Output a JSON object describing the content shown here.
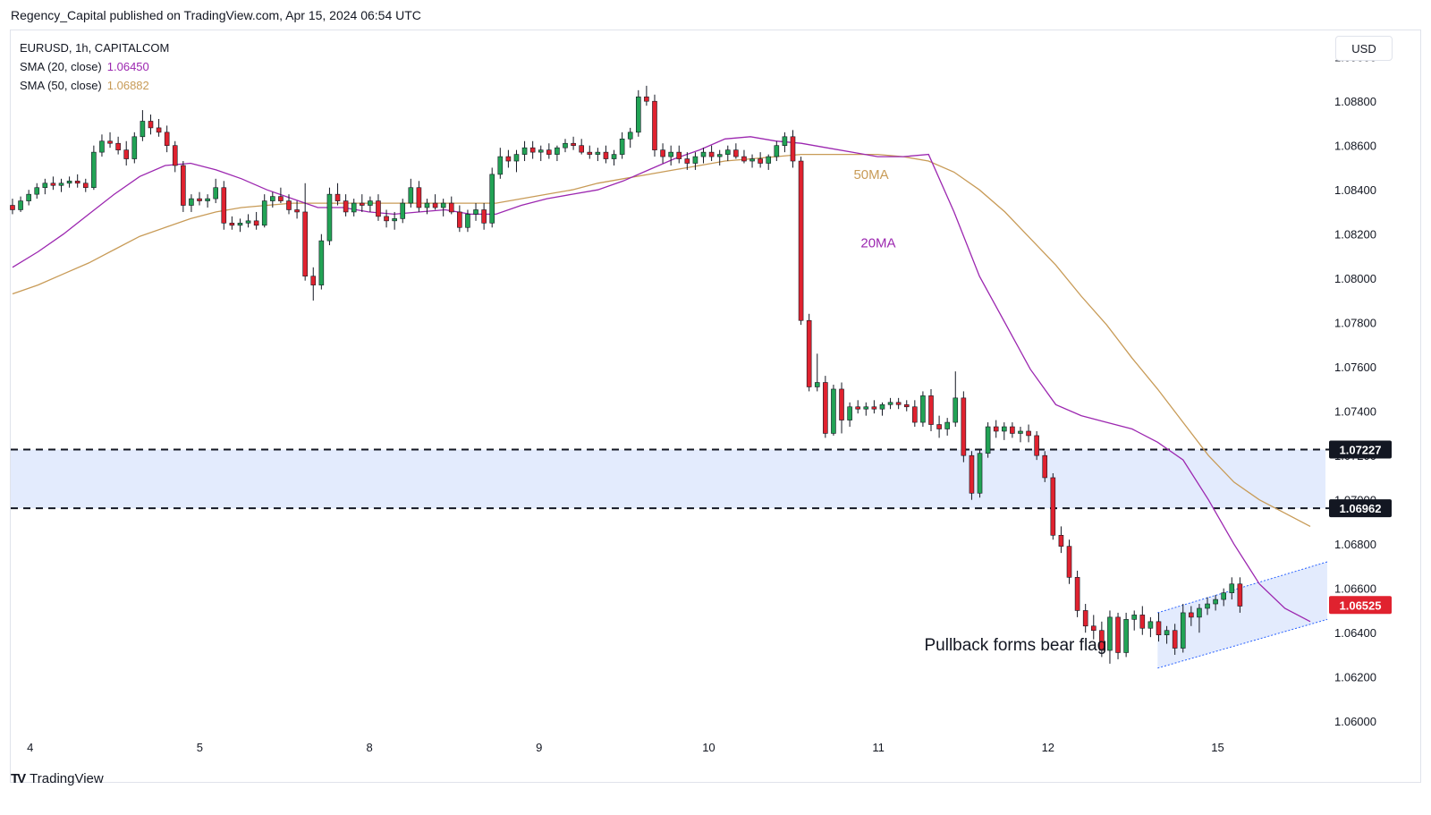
{
  "header": {
    "publisher_line": "Regency_Capital published on TradingView.com, Apr 15, 2024 06:54 UTC"
  },
  "legend": {
    "symbol": "EURUSD, 1h, CAPITALCOM",
    "sma20_label": "SMA (20, close)",
    "sma20_value": "1.06450",
    "sma50_label": "SMA (50, close)",
    "sma50_value": "1.06882"
  },
  "currency_button": "USD",
  "footer": {
    "logo_icon": "TV",
    "logo_text": "TradingView"
  },
  "colors": {
    "up": "#22a355",
    "down": "#e0222f",
    "sma20": "#9c27b0",
    "sma50": "#c89b57",
    "zone": "#e3ebfd",
    "flag": "#e3ebfd",
    "flag_line": "#2962ff",
    "price_label": "#131722",
    "last_price": "#e0222f"
  },
  "chart_data": {
    "type": "candlestick",
    "title": "",
    "xlabel": "",
    "ylabel": "",
    "ylim": [
      1.0592,
      1.0912
    ],
    "y_ticks": [
      "1.06000",
      "1.06200",
      "1.06400",
      "1.06600",
      "1.06800",
      "1.07000",
      "1.07200",
      "1.07400",
      "1.07600",
      "1.07800",
      "1.08000",
      "1.08200",
      "1.08400",
      "1.08600",
      "1.08800",
      "1.09000"
    ],
    "x_ticks": [
      "4",
      "5",
      "8",
      "9",
      "10",
      "11",
      "12",
      "15"
    ],
    "x_tick_bars": [
      5,
      53,
      101,
      149,
      197,
      245,
      293,
      341
    ],
    "bars_visible": 372,
    "price_markers": [
      {
        "label": "1.07227",
        "value": 1.07227,
        "style": "dashed"
      },
      {
        "label": "1.06962",
        "value": 1.06962,
        "style": "dashed"
      },
      {
        "label": "1.06525",
        "value": 1.06525,
        "style": "last"
      }
    ],
    "support_zone": [
      1.06962,
      1.07227
    ],
    "annotations": [
      {
        "text": "50MA",
        "bar": 238,
        "value": 1.0845,
        "color": "#c89b57"
      },
      {
        "text": "20MA",
        "bar": 240,
        "value": 1.0814,
        "color": "#9c27b0"
      },
      {
        "text": "Pullback forms bear flag",
        "bar": 258,
        "value": 1.0632,
        "color": "#131722"
      }
    ],
    "bear_flag": {
      "start_bar": 324,
      "end_bar": 372,
      "upper": [
        1.0649,
        1.0672
      ],
      "lower": [
        1.0624,
        1.0646
      ]
    },
    "ohlc": [
      [
        1.0833,
        1.0836,
        1.0829,
        1.0831
      ],
      [
        1.0831,
        1.0837,
        1.083,
        1.0835
      ],
      [
        1.0835,
        1.084,
        1.0833,
        1.0838
      ],
      [
        1.0838,
        1.0843,
        1.0836,
        1.0841
      ],
      [
        1.0841,
        1.0845,
        1.0838,
        1.0843
      ],
      [
        1.0843,
        1.0846,
        1.084,
        1.0842
      ],
      [
        1.0842,
        1.0845,
        1.0839,
        1.0843
      ],
      [
        1.0843,
        1.0846,
        1.0841,
        1.0844
      ],
      [
        1.0844,
        1.0847,
        1.0841,
        1.0843
      ],
      [
        1.0843,
        1.0845,
        1.0839,
        1.0841
      ],
      [
        1.0841,
        1.086,
        1.084,
        1.0857
      ],
      [
        1.0857,
        1.0865,
        1.0855,
        1.0862
      ],
      [
        1.0862,
        1.0866,
        1.0859,
        1.0861
      ],
      [
        1.0861,
        1.0864,
        1.0856,
        1.0858
      ],
      [
        1.0858,
        1.0862,
        1.0851,
        1.0854
      ],
      [
        1.0854,
        1.0866,
        1.0852,
        1.0864
      ],
      [
        1.0864,
        1.0876,
        1.0862,
        1.0871
      ],
      [
        1.0871,
        1.0874,
        1.0865,
        1.0868
      ],
      [
        1.0868,
        1.0872,
        1.0864,
        1.0866
      ],
      [
        1.0866,
        1.0869,
        1.0857,
        1.086
      ],
      [
        1.086,
        1.0862,
        1.0848,
        1.0851
      ],
      [
        1.0851,
        1.0853,
        1.083,
        1.0833
      ],
      [
        1.0833,
        1.0838,
        1.083,
        1.0836
      ],
      [
        1.0836,
        1.0839,
        1.0833,
        1.0835
      ],
      [
        1.0835,
        1.0838,
        1.0832,
        1.0836
      ],
      [
        1.0836,
        1.0845,
        1.0834,
        1.0841
      ],
      [
        1.0841,
        1.0844,
        1.0822,
        1.0825
      ],
      [
        1.0825,
        1.0828,
        1.0822,
        1.0824
      ],
      [
        1.0824,
        1.0827,
        1.0821,
        1.0825
      ],
      [
        1.0825,
        1.0829,
        1.0823,
        1.0826
      ],
      [
        1.0826,
        1.083,
        1.0822,
        1.0824
      ],
      [
        1.0824,
        1.0838,
        1.0823,
        1.0835
      ],
      [
        1.0835,
        1.0839,
        1.0832,
        1.0837
      ],
      [
        1.0837,
        1.0841,
        1.0834,
        1.0835
      ],
      [
        1.0835,
        1.0838,
        1.0829,
        1.0831
      ],
      [
        1.0831,
        1.0835,
        1.0827,
        1.083
      ],
      [
        1.083,
        1.0843,
        1.0799,
        1.0801
      ],
      [
        1.0801,
        1.0805,
        1.079,
        1.0797
      ],
      [
        1.0797,
        1.082,
        1.0795,
        1.0817
      ],
      [
        1.0817,
        1.0841,
        1.0815,
        1.0838
      ],
      [
        1.0838,
        1.0843,
        1.0833,
        1.0835
      ],
      [
        1.0835,
        1.0838,
        1.0828,
        1.083
      ],
      [
        1.083,
        1.0836,
        1.0828,
        1.0834
      ],
      [
        1.0834,
        1.0838,
        1.083,
        1.0833
      ],
      [
        1.0833,
        1.0837,
        1.083,
        1.0835
      ],
      [
        1.0835,
        1.0838,
        1.0826,
        1.0828
      ],
      [
        1.0828,
        1.0831,
        1.0823,
        1.0826
      ],
      [
        1.0826,
        1.083,
        1.0822,
        1.0827
      ],
      [
        1.0827,
        1.0836,
        1.0825,
        1.0834
      ],
      [
        1.0834,
        1.0845,
        1.0832,
        1.0841
      ],
      [
        1.0841,
        1.0844,
        1.083,
        1.0832
      ],
      [
        1.0832,
        1.0836,
        1.0829,
        1.0834
      ],
      [
        1.0834,
        1.0838,
        1.0831,
        1.0832
      ],
      [
        1.0832,
        1.0836,
        1.0828,
        1.0834
      ],
      [
        1.0834,
        1.0837,
        1.0829,
        1.083
      ],
      [
        1.083,
        1.0833,
        1.0821,
        1.0823
      ],
      [
        1.0823,
        1.0831,
        1.0821,
        1.0829
      ],
      [
        1.0829,
        1.0834,
        1.0826,
        1.0831
      ],
      [
        1.0831,
        1.0834,
        1.0822,
        1.0825
      ],
      [
        1.0825,
        1.085,
        1.0823,
        1.0847
      ],
      [
        1.0847,
        1.0859,
        1.0845,
        1.0855
      ],
      [
        1.0855,
        1.0858,
        1.085,
        1.0853
      ],
      [
        1.0853,
        1.0858,
        1.0848,
        1.0856
      ],
      [
        1.0856,
        1.0862,
        1.0853,
        1.0859
      ],
      [
        1.0859,
        1.0862,
        1.0854,
        1.0857
      ],
      [
        1.0857,
        1.086,
        1.0853,
        1.0858
      ],
      [
        1.0858,
        1.0861,
        1.0854,
        1.0856
      ],
      [
        1.0856,
        1.086,
        1.0853,
        1.0859
      ],
      [
        1.0859,
        1.0863,
        1.0857,
        1.0861
      ],
      [
        1.0861,
        1.0864,
        1.0858,
        1.086
      ],
      [
        1.086,
        1.0863,
        1.0856,
        1.0857
      ],
      [
        1.0857,
        1.086,
        1.0854,
        1.0856
      ],
      [
        1.0856,
        1.0859,
        1.0853,
        1.0857
      ],
      [
        1.0857,
        1.086,
        1.0852,
        1.0854
      ],
      [
        1.0854,
        1.0858,
        1.0851,
        1.0856
      ],
      [
        1.0856,
        1.0866,
        1.0854,
        1.0863
      ],
      [
        1.0863,
        1.0868,
        1.0859,
        1.0866
      ],
      [
        1.0866,
        1.0885,
        1.0864,
        1.0882
      ],
      [
        1.0882,
        1.0887,
        1.0878,
        1.088
      ],
      [
        1.088,
        1.0883,
        1.0855,
        1.0858
      ],
      [
        1.0858,
        1.0861,
        1.0852,
        1.0855
      ],
      [
        1.0855,
        1.086,
        1.0851,
        1.0857
      ],
      [
        1.0857,
        1.086,
        1.0852,
        1.0854
      ],
      [
        1.0854,
        1.0857,
        1.0849,
        1.0852
      ],
      [
        1.0852,
        1.0857,
        1.0849,
        1.0855
      ],
      [
        1.0855,
        1.0859,
        1.0852,
        1.0857
      ],
      [
        1.0857,
        1.086,
        1.0853,
        1.0855
      ],
      [
        1.0855,
        1.0858,
        1.0851,
        1.0856
      ],
      [
        1.0856,
        1.086,
        1.0853,
        1.0858
      ],
      [
        1.0858,
        1.0861,
        1.0854,
        1.0855
      ],
      [
        1.0855,
        1.0858,
        1.0852,
        1.0853
      ],
      [
        1.0853,
        1.0856,
        1.085,
        1.0854
      ],
      [
        1.0854,
        1.0857,
        1.085,
        1.0852
      ],
      [
        1.0852,
        1.0856,
        1.0849,
        1.0855
      ],
      [
        1.0855,
        1.0862,
        1.0853,
        1.086
      ],
      [
        1.086,
        1.0866,
        1.0857,
        1.0864
      ],
      [
        1.0864,
        1.0867,
        1.085,
        1.0853
      ],
      [
        1.0853,
        1.0855,
        1.0779,
        1.0781
      ],
      [
        1.0781,
        1.0784,
        1.0749,
        1.0751
      ],
      [
        1.0751,
        1.0766,
        1.0749,
        1.0753
      ],
      [
        1.0753,
        1.0756,
        1.0728,
        1.073
      ],
      [
        1.073,
        1.0752,
        1.0729,
        1.075
      ],
      [
        1.075,
        1.0753,
        1.073,
        1.0736
      ],
      [
        1.0736,
        1.0744,
        1.0733,
        1.0742
      ],
      [
        1.0742,
        1.0745,
        1.0739,
        1.0741
      ],
      [
        1.0741,
        1.0744,
        1.0738,
        1.0742
      ],
      [
        1.0742,
        1.0745,
        1.0739,
        1.0741
      ],
      [
        1.0741,
        1.0744,
        1.0738,
        1.0743
      ],
      [
        1.0743,
        1.0746,
        1.0741,
        1.0744
      ],
      [
        1.0744,
        1.0746,
        1.0741,
        1.0743
      ],
      [
        1.0743,
        1.0745,
        1.074,
        1.0742
      ],
      [
        1.0742,
        1.0745,
        1.0733,
        1.0735
      ],
      [
        1.0735,
        1.0749,
        1.0733,
        1.0747
      ],
      [
        1.0747,
        1.075,
        1.0731,
        1.0734
      ],
      [
        1.0734,
        1.0738,
        1.0728,
        1.0732
      ],
      [
        1.0732,
        1.0737,
        1.0729,
        1.0735
      ],
      [
        1.0735,
        1.0758,
        1.0733,
        1.0746
      ],
      [
        1.0746,
        1.0749,
        1.0717,
        1.072
      ],
      [
        1.072,
        1.0722,
        1.07,
        1.0703
      ],
      [
        1.0703,
        1.0723,
        1.0701,
        1.0721
      ],
      [
        1.0721,
        1.0735,
        1.0719,
        1.0733
      ],
      [
        1.0733,
        1.0736,
        1.0728,
        1.0731
      ],
      [
        1.0731,
        1.0735,
        1.0727,
        1.0733
      ],
      [
        1.0733,
        1.0735,
        1.0728,
        1.073
      ],
      [
        1.073,
        1.0733,
        1.0726,
        1.0731
      ],
      [
        1.0731,
        1.0734,
        1.0726,
        1.0729
      ],
      [
        1.0729,
        1.0731,
        1.0718,
        1.072
      ],
      [
        1.072,
        1.0722,
        1.0708,
        1.071
      ],
      [
        1.071,
        1.0712,
        1.0682,
        1.0684
      ],
      [
        1.0684,
        1.0688,
        1.0676,
        1.0679
      ],
      [
        1.0679,
        1.0682,
        1.0662,
        1.0665
      ],
      [
        1.0665,
        1.0668,
        1.0647,
        1.065
      ],
      [
        1.065,
        1.0653,
        1.064,
        1.0643
      ],
      [
        1.0643,
        1.0648,
        1.0637,
        1.0641
      ],
      [
        1.0641,
        1.0645,
        1.0629,
        1.0632
      ],
      [
        1.0632,
        1.065,
        1.0626,
        1.0647
      ],
      [
        1.0647,
        1.0649,
        1.0628,
        1.0631
      ],
      [
        1.0631,
        1.0649,
        1.0629,
        1.0646
      ],
      [
        1.0646,
        1.065,
        1.0641,
        1.0648
      ],
      [
        1.0648,
        1.0652,
        1.0639,
        1.0642
      ],
      [
        1.0642,
        1.0647,
        1.0638,
        1.0645
      ],
      [
        1.0645,
        1.0649,
        1.0636,
        1.0639
      ],
      [
        1.0639,
        1.0643,
        1.0635,
        1.0641
      ],
      [
        1.0641,
        1.0644,
        1.063,
        1.0633
      ],
      [
        1.0633,
        1.0653,
        1.0631,
        1.0649
      ],
      [
        1.0649,
        1.0652,
        1.0643,
        1.0647
      ],
      [
        1.0647,
        1.0653,
        1.064,
        1.0651
      ],
      [
        1.0651,
        1.0656,
        1.0648,
        1.0653
      ],
      [
        1.0653,
        1.0657,
        1.065,
        1.0655
      ],
      [
        1.0655,
        1.066,
        1.0652,
        1.0658
      ],
      [
        1.0658,
        1.0665,
        1.0655,
        1.0662
      ],
      [
        1.0662,
        1.0665,
        1.0649,
        1.0652
      ]
    ],
    "ohlc_bar_step": 2.3,
    "sma20": [
      1.0805,
      1.0812,
      1.082,
      1.0829,
      1.0838,
      1.0846,
      1.0851,
      1.0852,
      1.0849,
      1.0845,
      1.084,
      1.0836,
      1.0832,
      1.0832,
      1.083,
      1.0829,
      1.083,
      1.0831,
      1.0829,
      1.0829,
      1.0833,
      1.0836,
      1.0838,
      1.084,
      1.0844,
      1.0849,
      1.0854,
      1.0858,
      1.0863,
      1.0864,
      1.0862,
      1.0861,
      1.0859,
      1.0857,
      1.0855,
      1.0855,
      1.0856,
      1.083,
      1.0801,
      1.078,
      1.0759,
      1.0743,
      1.0738,
      1.0735,
      1.0732,
      1.0726,
      1.0718,
      1.07,
      1.068,
      1.0662,
      1.0651,
      1.0645
    ],
    "sma50": [
      1.0793,
      1.0797,
      1.0802,
      1.0807,
      1.0813,
      1.0819,
      1.0823,
      1.0827,
      1.083,
      1.0832,
      1.0833,
      1.0834,
      1.0834,
      1.0834,
      1.0834,
      1.0834,
      1.0834,
      1.0834,
      1.0834,
      1.0834,
      1.0836,
      1.0838,
      1.084,
      1.0843,
      1.0845,
      1.0847,
      1.0849,
      1.0851,
      1.0853,
      1.0854,
      1.0855,
      1.0856,
      1.0856,
      1.0856,
      1.0856,
      1.0855,
      1.0853,
      1.0848,
      1.084,
      1.083,
      1.0818,
      1.0806,
      1.0792,
      1.0779,
      1.0764,
      1.075,
      1.0735,
      1.072,
      1.0708,
      1.07,
      1.0694,
      1.0688
    ],
    "sma_step_bars": 7.2
  }
}
